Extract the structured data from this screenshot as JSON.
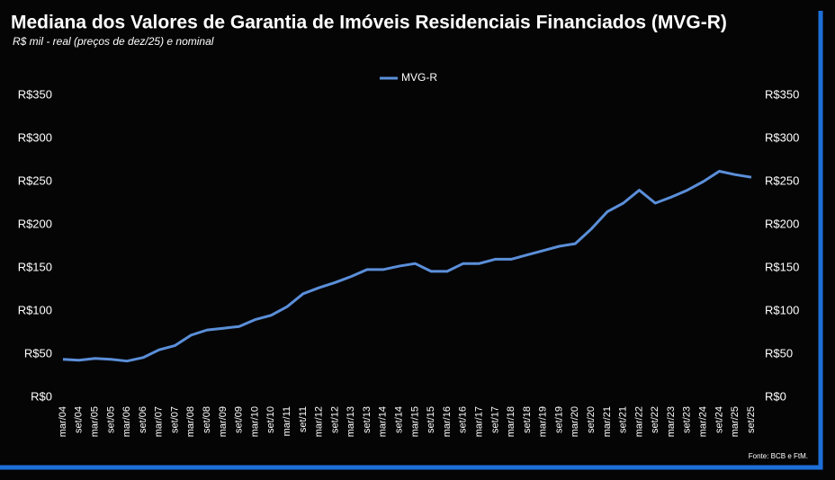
{
  "chart_data": {
    "type": "line",
    "title": "Mediana dos Valores de Garantia de Imóveis Residenciais Financiados (MVG-R)",
    "subtitle": "R$ mil - real (preços de dez/25) e nominal",
    "source": "Fonte: BCB e FtM.",
    "categories": [
      "mar/04",
      "set/04",
      "mar/05",
      "set/05",
      "mar/06",
      "set/06",
      "mar/07",
      "set/07",
      "mar/08",
      "set/08",
      "mar/09",
      "set/09",
      "mar/10",
      "set/10",
      "mar/11",
      "set/11",
      "mar/12",
      "set/12",
      "mar/13",
      "set/13",
      "mar/14",
      "set/14",
      "mar/15",
      "set/15",
      "mar/16",
      "set/16",
      "mar/17",
      "set/17",
      "mar/18",
      "set/18",
      "mar/19",
      "set/19",
      "mar/20",
      "set/20",
      "mar/21",
      "set/21",
      "mar/22",
      "set/22",
      "mar/23",
      "set/23",
      "mar/24",
      "set/24",
      "mar/25",
      "set/25"
    ],
    "series": [
      {
        "name": "MVG-R",
        "color": "#5b8fd9",
        "values": [
          44,
          43,
          45,
          44,
          42,
          46,
          55,
          60,
          72,
          78,
          80,
          82,
          90,
          95,
          105,
          120,
          127,
          133,
          140,
          148,
          148,
          152,
          155,
          146,
          146,
          155,
          155,
          160,
          160,
          165,
          170,
          175,
          178,
          195,
          215,
          225,
          240,
          225,
          232,
          240,
          250,
          262,
          258,
          255
        ]
      }
    ],
    "ylim": [
      0,
      350
    ],
    "yticks": [
      {
        "value": 0,
        "label": "R$0"
      },
      {
        "value": 50,
        "label": "R$50"
      },
      {
        "value": 100,
        "label": "R$100"
      },
      {
        "value": 150,
        "label": "R$150"
      },
      {
        "value": 200,
        "label": "R$200"
      },
      {
        "value": 250,
        "label": "R$250"
      },
      {
        "value": 300,
        "label": "R$300"
      },
      {
        "value": 350,
        "label": "R$350"
      }
    ],
    "y2lim": [
      0,
      350
    ],
    "y2ticks": [
      {
        "value": 0,
        "label": "R$0"
      },
      {
        "value": 50,
        "label": "R$50"
      },
      {
        "value": 100,
        "label": "R$100"
      },
      {
        "value": 150,
        "label": "R$150"
      },
      {
        "value": 200,
        "label": "R$200"
      },
      {
        "value": 250,
        "label": "R$250"
      },
      {
        "value": 300,
        "label": "R$300"
      },
      {
        "value": 350,
        "label": "R$350"
      }
    ],
    "grid": false
  }
}
